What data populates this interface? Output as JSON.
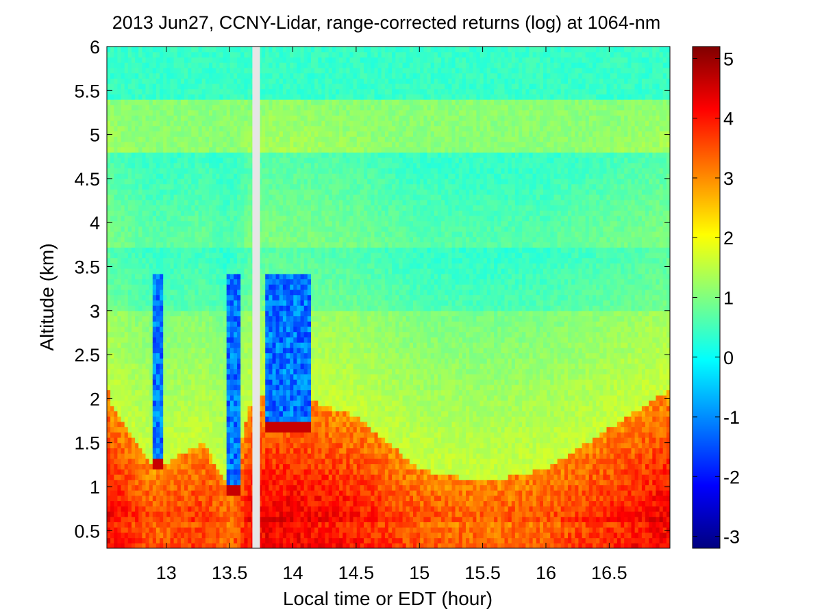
{
  "chart_data": {
    "type": "heatmap",
    "title": "2013 Jun27, CCNY-Lidar, range-corrected returns (log) at 1064-nm",
    "xlabel": "Local time or EDT (hour)",
    "ylabel": "Altitude (km)",
    "xlim": [
      12.53,
      16.98
    ],
    "ylim": [
      0.3,
      6.0
    ],
    "x_ticks": [
      "13",
      "13.5",
      "14",
      "14.5",
      "15",
      "15.5",
      "16",
      "16.5"
    ],
    "y_ticks": [
      "0.5",
      "1",
      "1.5",
      "2",
      "2.5",
      "3",
      "3.5",
      "4",
      "4.5",
      "5",
      "5.5",
      "6"
    ],
    "colorbar": {
      "colormap": "jet",
      "clim": [
        -3.2,
        5.2
      ],
      "ticks": [
        "-3",
        "-2",
        "-1",
        "0",
        "1",
        "2",
        "3",
        "4",
        "5"
      ]
    },
    "data_gap": {
      "x_start": 13.68,
      "x_end": 13.74,
      "color": "#e6e6e6"
    },
    "features": {
      "boundary_layer_top_km": [
        {
          "x": 12.55,
          "y": 1.95
        },
        {
          "x": 12.9,
          "y": 1.2
        },
        {
          "x": 13.3,
          "y": 1.5
        },
        {
          "x": 13.5,
          "y": 0.95
        },
        {
          "x": 13.65,
          "y": 1.9
        },
        {
          "x": 13.8,
          "y": 2.1
        },
        {
          "x": 14.1,
          "y": 2.0
        },
        {
          "x": 14.5,
          "y": 1.8
        },
        {
          "x": 15.0,
          "y": 1.2
        },
        {
          "x": 15.5,
          "y": 1.05
        },
        {
          "x": 16.0,
          "y": 1.2
        },
        {
          "x": 16.98,
          "y": 2.1
        }
      ],
      "elevated_aerosol_layer_km": [
        4.8,
        5.4
      ],
      "cloud_columns": [
        {
          "x_start": 12.9,
          "x_end": 12.97,
          "base_km": 1.2
        },
        {
          "x_start": 13.47,
          "x_end": 13.58,
          "base_km": 0.9
        },
        {
          "x_start": 13.78,
          "x_end": 14.15,
          "base_km": 1.6
        }
      ]
    }
  }
}
